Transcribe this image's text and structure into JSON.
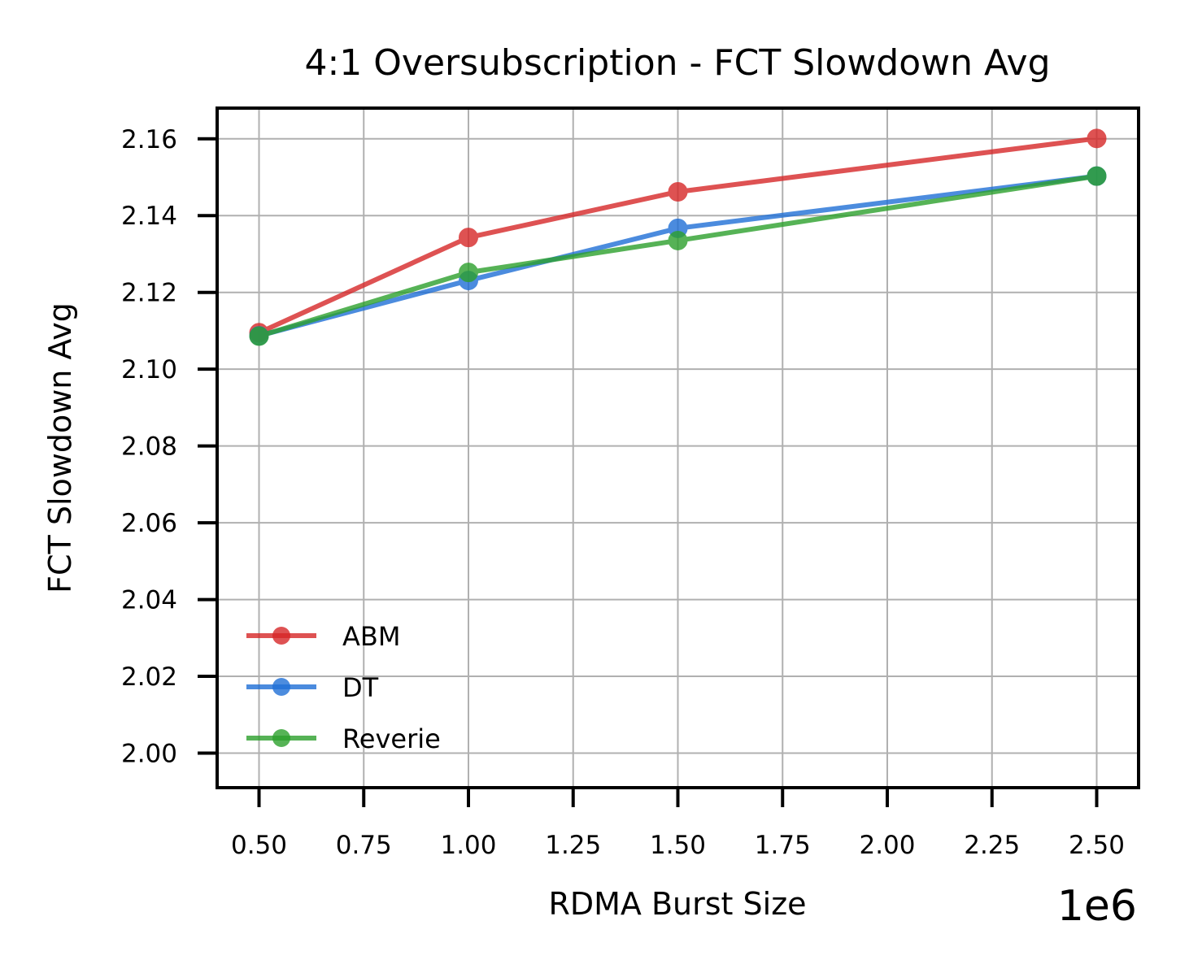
{
  "chart_data": {
    "type": "line",
    "title": "4:1 Oversubscription - FCT Slowdown Avg",
    "xlabel": "RDMA Burst Size",
    "ylabel": "FCT Slowdown Avg",
    "x_offset_label": "1e6",
    "xlim": [
      0.4,
      2.6
    ],
    "ylim": [
      1.991,
      2.168
    ],
    "x_ticks": [
      0.5,
      0.75,
      1.0,
      1.25,
      1.5,
      1.75,
      2.0,
      2.25,
      2.5
    ],
    "x_tick_labels": [
      "0.50",
      "0.75",
      "1.00",
      "1.25",
      "1.50",
      "1.75",
      "2.00",
      "2.25",
      "2.50"
    ],
    "y_ticks": [
      2.0,
      2.02,
      2.04,
      2.06,
      2.08,
      2.1,
      2.12,
      2.14,
      2.16
    ],
    "y_tick_labels": [
      "2.00",
      "2.02",
      "2.04",
      "2.06",
      "2.08",
      "2.10",
      "2.12",
      "2.14",
      "2.16"
    ],
    "grid": true,
    "legend_position": "lower-left",
    "x": [
      0.5,
      1.0,
      1.5,
      2.5
    ],
    "series": [
      {
        "name": "ABM",
        "color": "#d62728",
        "values": [
          2.1095,
          2.1343,
          2.1462,
          2.1601
        ]
      },
      {
        "name": "DT",
        "color": "#1f6fd6",
        "values": [
          2.1087,
          2.1231,
          2.1367,
          2.1503
        ]
      },
      {
        "name": "Reverie",
        "color": "#2ca02c",
        "values": [
          2.1086,
          2.1252,
          2.1335,
          2.1503
        ]
      }
    ]
  }
}
